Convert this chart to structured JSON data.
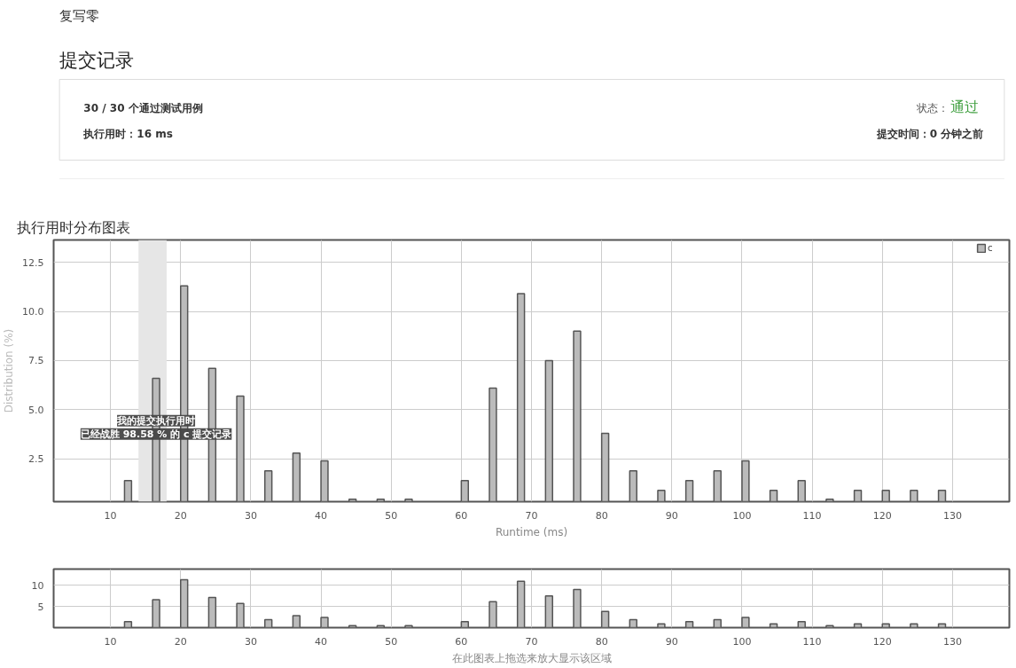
{
  "chart_data": [
    {
      "type": "other",
      "title": "提交记录",
      "annotations": [
        "复写零",
        "30 / 30 个通过测试用例",
        "执行用时：16 ms",
        "状态：",
        "通过",
        "提交时间：0 分钟之前"
      ]
    },
    {
      "type": "bar",
      "title": "执行用时分布图表",
      "xlabel": "Runtime (ms)",
      "ylabel": "Distribution (%)",
      "x": [
        12.5,
        16.5,
        20.5,
        24.5,
        28.5,
        32.5,
        36.5,
        40.5,
        44.5,
        48.5,
        52.5,
        56.5,
        60.5,
        64.5,
        68.5,
        72.5,
        76.5,
        80.5,
        84.5,
        88.5,
        92.5,
        96.5,
        100.5,
        104.5,
        108.5,
        112.5,
        116.5,
        120.5,
        124.5,
        128.5
      ],
      "series": [
        {
          "name": "c",
          "color": "#bbbbbb",
          "values": [
            1.4,
            6.6,
            11.3,
            7.1,
            5.7,
            1.9,
            2.8,
            2.4,
            0.45,
            0.45,
            0.45,
            null,
            1.4,
            6.1,
            10.9,
            7.5,
            9.0,
            3.8,
            1.9,
            0.9,
            1.4,
            1.9,
            2.4,
            0.9,
            1.4,
            0.45,
            0.9,
            0.9,
            0.9,
            0.9
          ]
        }
      ],
      "xlim": [
        1.9,
        138.1
      ],
      "ylim": [
        0.33,
        13.63
      ],
      "xticks": [
        10,
        20,
        30,
        40,
        50,
        60,
        70,
        80,
        90,
        100,
        110,
        120,
        130
      ],
      "yticks": [
        {
          "value": 2.5,
          "label": "2.5"
        },
        {
          "value": 5,
          "label": "5.0"
        },
        {
          "value": 7.5,
          "label": "7.5"
        },
        {
          "value": 10,
          "label": "10.0"
        },
        {
          "value": 12.5,
          "label": "12.5"
        }
      ],
      "grid": true,
      "legend": "top right",
      "bands": [
        {
          "axis": "x",
          "from": 14,
          "to": 18,
          "color": "#e6e6e6"
        }
      ],
      "annotations": [
        {
          "text": "我的提交执行用时",
          "x": 16.5,
          "y": 3.2
        },
        {
          "text": "已经战胜 98.58 % 的 c 提交记录",
          "x": 16.5,
          "y": 3.2
        }
      ]
    },
    {
      "type": "bar",
      "xlabel": "在此图表上拖选来放大显示该区域",
      "x": [
        12.5,
        16.5,
        20.5,
        24.5,
        28.5,
        32.5,
        36.5,
        40.5,
        44.5,
        48.5,
        52.5,
        56.5,
        60.5,
        64.5,
        68.5,
        72.5,
        76.5,
        80.5,
        84.5,
        88.5,
        92.5,
        96.5,
        100.5,
        104.5,
        108.5,
        112.5,
        116.5,
        120.5,
        124.5,
        128.5
      ],
      "series": [
        {
          "color": "#bbbbbb",
          "values": [
            1.4,
            6.6,
            11.3,
            7.1,
            5.7,
            1.9,
            2.8,
            2.4,
            0.45,
            0.45,
            0.45,
            null,
            1.4,
            6.1,
            10.9,
            7.5,
            9.0,
            3.8,
            1.9,
            0.9,
            1.4,
            1.9,
            2.4,
            0.9,
            1.4,
            0.45,
            0.9,
            0.9,
            0.9,
            0.9
          ]
        }
      ],
      "xlim": [
        1.9,
        138.1
      ],
      "ylim": [
        0,
        13.8
      ],
      "xticks": [
        10,
        20,
        30,
        40,
        50,
        60,
        70,
        80,
        90,
        100,
        110,
        120,
        130
      ],
      "yticks": [
        5,
        10
      ],
      "grid": true
    }
  ]
}
